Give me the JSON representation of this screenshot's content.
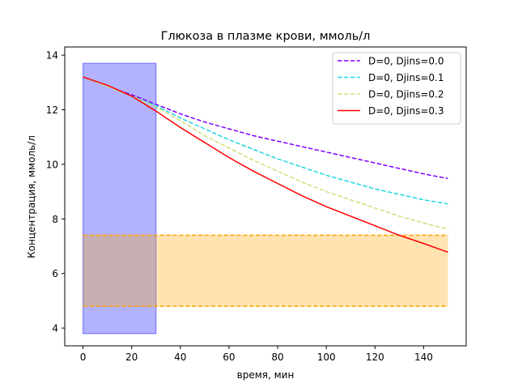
{
  "chart_data": {
    "type": "line",
    "title": "Глюкоза в плазме крови, ммоль/л",
    "xlabel": "время, мин",
    "ylabel": "Концентрация, ммоль/л",
    "xlim": [
      -7.5,
      157.5
    ],
    "ylim": [
      3.35,
      14.3
    ],
    "xticks": [
      0,
      20,
      40,
      60,
      80,
      100,
      120,
      140
    ],
    "yticks": [
      4,
      6,
      8,
      10,
      12,
      14
    ],
    "grid": false,
    "legend_position": "top-right",
    "x": [
      0,
      10,
      20,
      30,
      40,
      50,
      60,
      70,
      80,
      90,
      100,
      110,
      120,
      130,
      140,
      150
    ],
    "series": [
      {
        "name": "D=0, Djins=0.0",
        "color": "#7f00ff",
        "dash": "dashed",
        "values": [
          13.2,
          12.85,
          12.55,
          12.2,
          11.85,
          11.55,
          11.3,
          11.05,
          10.85,
          10.65,
          10.45,
          10.25,
          10.05,
          9.85,
          9.65,
          9.48
        ]
      },
      {
        "name": "D=0, Djins=0.1",
        "color": "#21d7e0",
        "dash": "dashed",
        "values": [
          13.2,
          12.85,
          12.5,
          12.15,
          11.7,
          11.3,
          10.9,
          10.55,
          10.2,
          9.9,
          9.6,
          9.35,
          9.1,
          8.9,
          8.7,
          8.55
        ]
      },
      {
        "name": "D=0, Djins=0.2",
        "color": "#cfe07a",
        "dash": "dashed",
        "values": [
          13.2,
          12.85,
          12.5,
          12.1,
          11.6,
          11.05,
          10.6,
          10.15,
          9.75,
          9.35,
          9.0,
          8.7,
          8.4,
          8.1,
          7.85,
          7.62
        ]
      },
      {
        "name": "D=0, Djins=0.3",
        "color": "#ff0000",
        "dash": "solid",
        "values": [
          13.2,
          12.9,
          12.5,
          11.95,
          11.35,
          10.8,
          10.25,
          9.75,
          9.3,
          8.85,
          8.45,
          8.1,
          7.75,
          7.4,
          7.1,
          6.78
        ]
      }
    ],
    "bands": [
      {
        "x_range": [
          0,
          30
        ],
        "y_range": [
          3.8,
          13.7
        ],
        "fill": "#0000ff",
        "fill_opacity": 0.3,
        "edge": "#0000ff",
        "edge_dash": "solid"
      },
      {
        "x_range": [
          0,
          150
        ],
        "y_range": [
          4.8,
          7.4
        ],
        "fill": "#ffa500",
        "fill_opacity": 0.3,
        "edge": "#ffa500",
        "edge_dash": "dashed"
      }
    ]
  }
}
